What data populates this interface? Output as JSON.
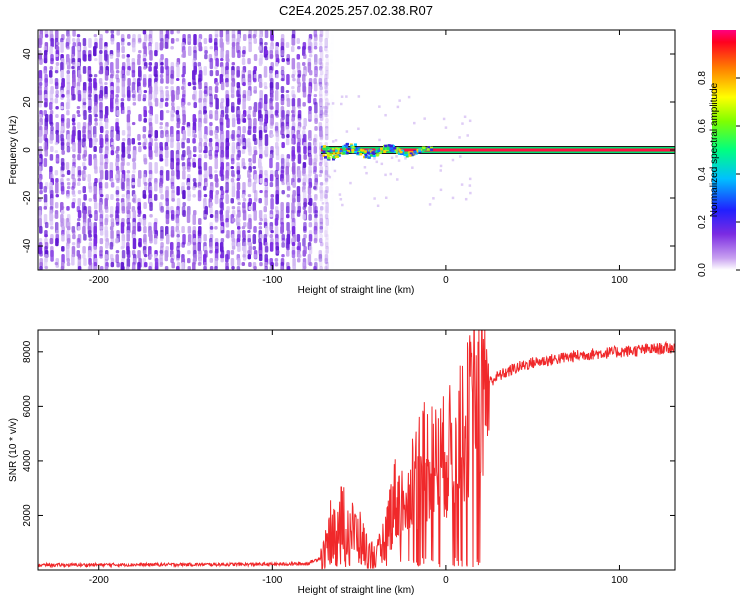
{
  "title": "C2E4.2025.257.02.38.R07",
  "colors": {
    "line": "#f0282a",
    "spectrum_noise": "#8a2be2",
    "signal_core": "#ff0040",
    "axis": "#000000"
  },
  "chart_data": [
    {
      "type": "heatmap",
      "xlabel": "Height of straight line (km)",
      "ylabel": "Frequency (Hz)",
      "xlim": [
        -235,
        132
      ],
      "ylim": [
        -50,
        50
      ],
      "xticks": [
        -200,
        -100,
        0,
        100
      ],
      "yticks": [
        -40,
        -20,
        0,
        20,
        40
      ],
      "noise_region_x": [
        -235,
        -67
      ],
      "signal_onset_x": -72,
      "signal_frequency": 0,
      "colorbar": {
        "label": "Normalized spectral amplitude",
        "range": [
          0,
          1
        ],
        "ticks": [
          0.0,
          0.2,
          0.4,
          0.6,
          0.8
        ],
        "tick_labels": [
          "0.0",
          "0.2",
          "0.4",
          "0.6",
          "0.8"
        ],
        "colormap": "rainbow"
      }
    },
    {
      "type": "line",
      "xlabel": "Height of straight line (km)",
      "ylabel": "SNR (10 * v/v)",
      "xlim": [
        -235,
        132
      ],
      "ylim": [
        0,
        8800
      ],
      "xticks": [
        -200,
        -100,
        0,
        100
      ],
      "yticks": [
        2000,
        4000,
        6000,
        8000
      ],
      "series": [
        {
          "x": [
            -235,
            -200,
            -150,
            -100,
            -80,
            -70,
            -65,
            -60,
            -55,
            -50,
            -45,
            -40,
            -35,
            -30,
            -25,
            -20,
            -15,
            -10,
            -5,
            0,
            5,
            10,
            15,
            20,
            25,
            30,
            40,
            50,
            60,
            70,
            80,
            90,
            100,
            110,
            120,
            132
          ],
          "y": [
            180,
            190,
            200,
            210,
            230,
            500,
            1800,
            2000,
            1500,
            1200,
            600,
            300,
            1200,
            2600,
            2400,
            3200,
            3800,
            4000,
            3900,
            4200,
            4600,
            5000,
            6000,
            6600,
            6900,
            7100,
            7400,
            7600,
            7700,
            7800,
            7900,
            7950,
            8000,
            8050,
            8100,
            8150
          ]
        }
      ]
    }
  ]
}
